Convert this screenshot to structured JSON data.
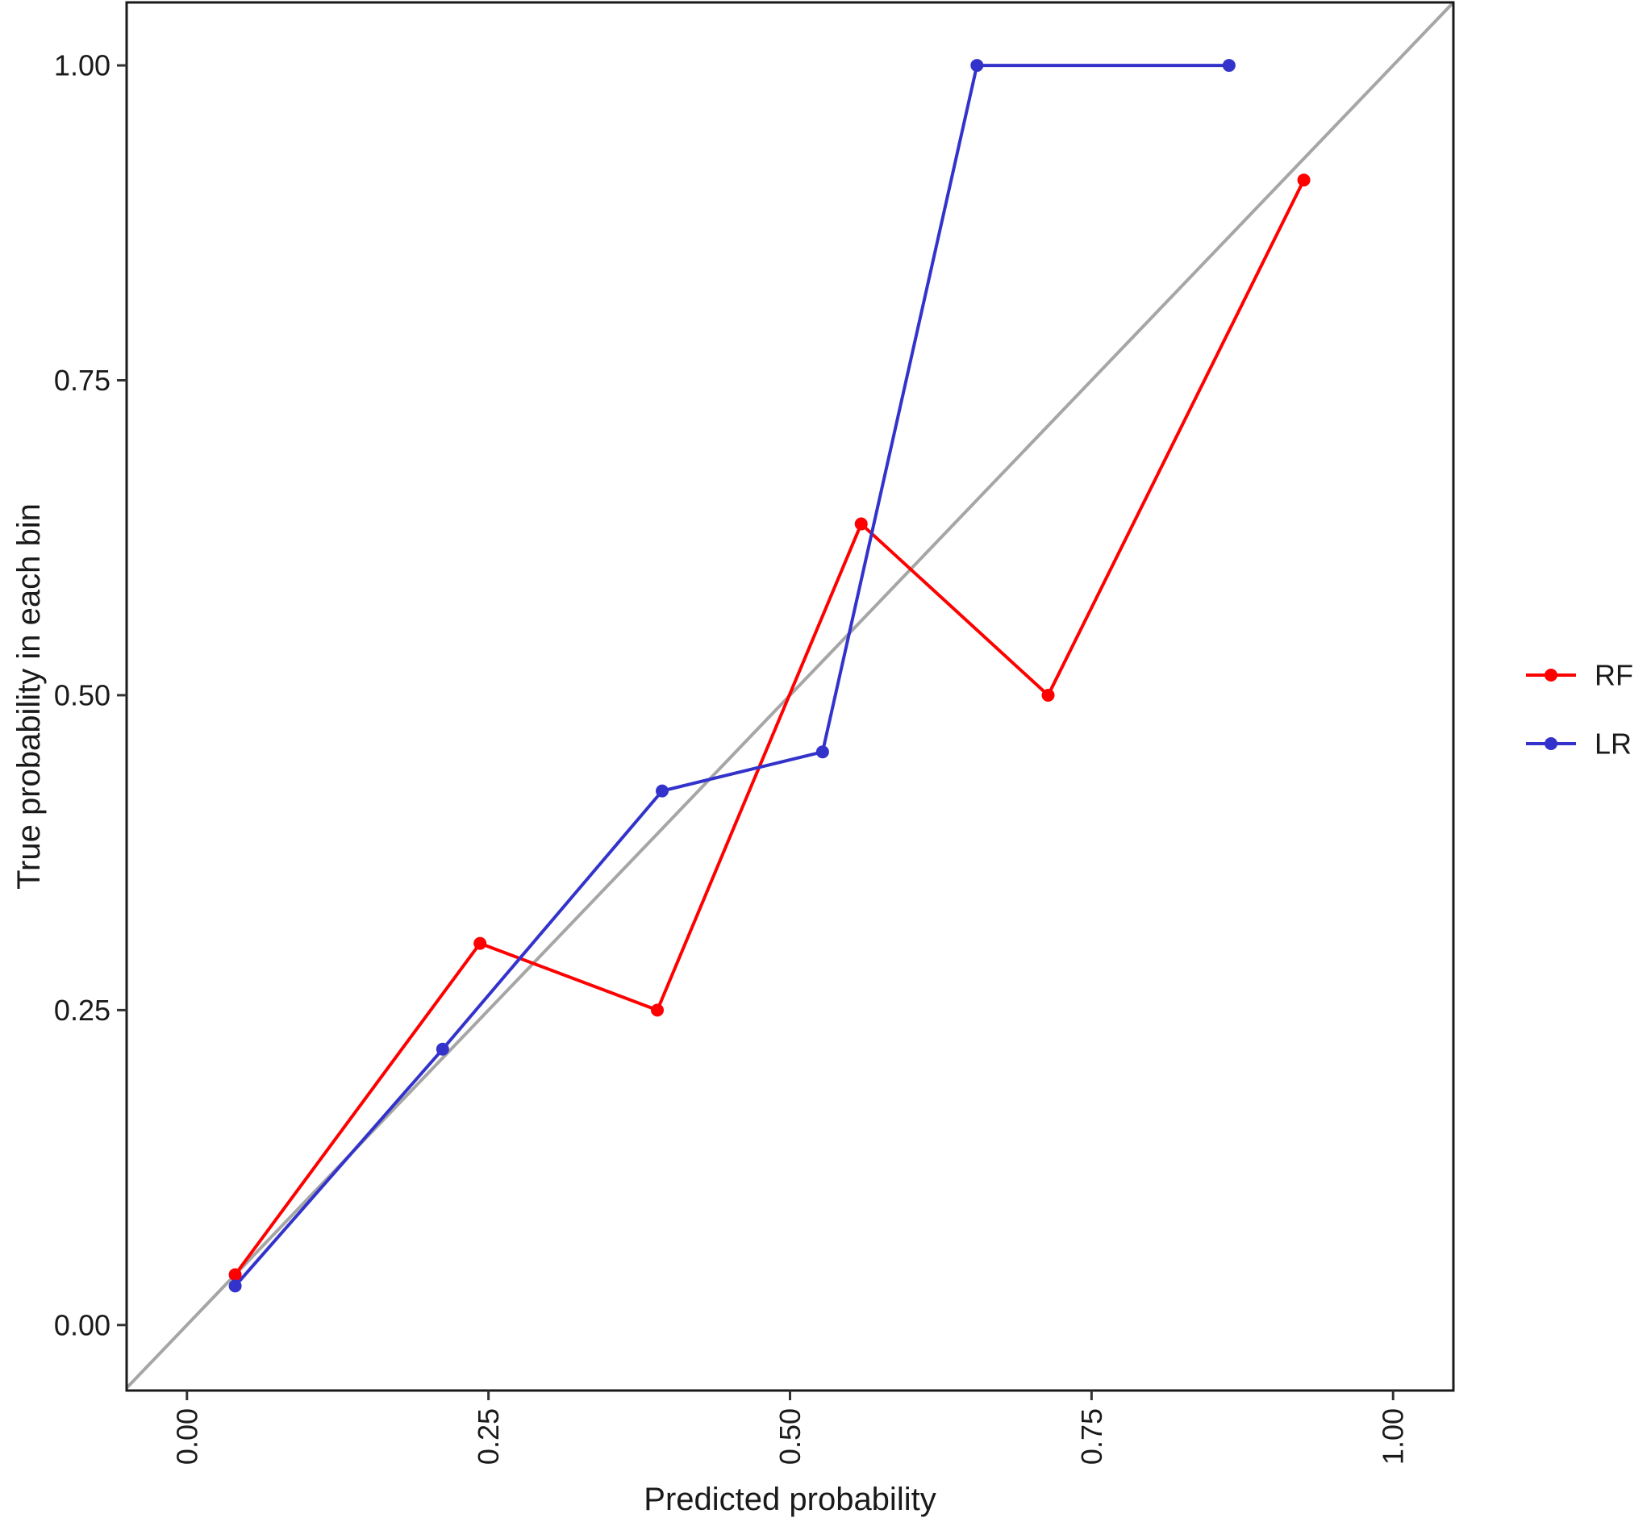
{
  "chart_data": {
    "type": "line",
    "title": "",
    "xlabel": "Predicted probability",
    "ylabel": "True probability in each bin",
    "xlim": [
      -0.05,
      1.05
    ],
    "ylim": [
      -0.052,
      1.05
    ],
    "x_ticks": [
      0,
      0.25,
      0.5,
      0.75,
      1
    ],
    "x_tick_labels": [
      "0.00",
      "0.25",
      "0.50",
      "0.75",
      "1.00"
    ],
    "y_ticks": [
      0,
      0.25,
      0.5,
      0.75,
      1
    ],
    "y_tick_labels": [
      "0.00",
      "0.25",
      "0.50",
      "0.75",
      "1.00"
    ],
    "grid": false,
    "legend_position": "right",
    "reference_line": {
      "from": [
        -0.05,
        -0.05
      ],
      "to": [
        1.05,
        1.05
      ],
      "color": "#a6a6a6"
    },
    "series": [
      {
        "name": "RF",
        "color": "#ff0000",
        "x": [
          0.04,
          0.243,
          0.39,
          0.559,
          0.714,
          0.926
        ],
        "y": [
          0.04,
          0.303,
          0.25,
          0.636,
          0.5,
          0.909
        ]
      },
      {
        "name": "LR",
        "color": "#3333cc",
        "x": [
          0.04,
          0.212,
          0.394,
          0.527,
          0.655,
          0.864
        ],
        "y": [
          0.031,
          0.219,
          0.424,
          0.455,
          1.0,
          1.0
        ]
      }
    ]
  }
}
